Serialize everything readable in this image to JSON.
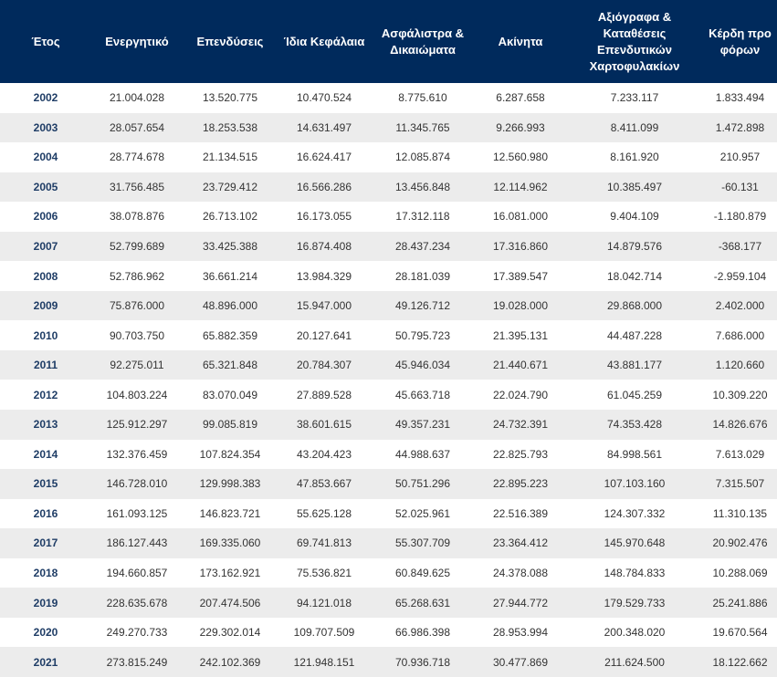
{
  "table": {
    "headers": [
      "Έτος",
      "Ενεργητικό",
      "Επενδύσεις",
      "Ίδια Κεφάλαια",
      "Ασφάλιστρα & Δικαιώματα",
      "Ακίνητα",
      "Αξιόγραφα & Καταθέσεις Επενδυτικών Χαρτοφυλακίων",
      "Κέρδη προ φόρων"
    ],
    "rows": [
      [
        "2002",
        "21.004.028",
        "13.520.775",
        "10.470.524",
        "8.775.610",
        "6.287.658",
        "7.233.117",
        "1.833.494"
      ],
      [
        "2003",
        "28.057.654",
        "18.253.538",
        "14.631.497",
        "11.345.765",
        "9.266.993",
        "8.411.099",
        "1.472.898"
      ],
      [
        "2004",
        "28.774.678",
        "21.134.515",
        "16.624.417",
        "12.085.874",
        "12.560.980",
        "8.161.920",
        "210.957"
      ],
      [
        "2005",
        "31.756.485",
        "23.729.412",
        "16.566.286",
        "13.456.848",
        "12.114.962",
        "10.385.497",
        "-60.131"
      ],
      [
        "2006",
        "38.078.876",
        "26.713.102",
        "16.173.055",
        "17.312.118",
        "16.081.000",
        "9.404.109",
        "-1.180.879"
      ],
      [
        "2007",
        "52.799.689",
        "33.425.388",
        "16.874.408",
        "28.437.234",
        "17.316.860",
        "14.879.576",
        "-368.177"
      ],
      [
        "2008",
        "52.786.962",
        "36.661.214",
        "13.984.329",
        "28.181.039",
        "17.389.547",
        "18.042.714",
        "-2.959.104"
      ],
      [
        "2009",
        "75.876.000",
        "48.896.000",
        "15.947.000",
        "49.126.712",
        "19.028.000",
        "29.868.000",
        "2.402.000"
      ],
      [
        "2010",
        "90.703.750",
        "65.882.359",
        "20.127.641",
        "50.795.723",
        "21.395.131",
        "44.487.228",
        "7.686.000"
      ],
      [
        "2011",
        "92.275.011",
        "65.321.848",
        "20.784.307",
        "45.946.034",
        "21.440.671",
        "43.881.177",
        "1.120.660"
      ],
      [
        "2012",
        "104.803.224",
        "83.070.049",
        "27.889.528",
        "45.663.718",
        "22.024.790",
        "61.045.259",
        "10.309.220"
      ],
      [
        "2013",
        "125.912.297",
        "99.085.819",
        "38.601.615",
        "49.357.231",
        "24.732.391",
        "74.353.428",
        "14.826.676"
      ],
      [
        "2014",
        "132.376.459",
        "107.824.354",
        "43.204.423",
        "44.988.637",
        "22.825.793",
        "84.998.561",
        "7.613.029"
      ],
      [
        "2015",
        "146.728.010",
        "129.998.383",
        "47.853.667",
        "50.751.296",
        "22.895.223",
        "107.103.160",
        "7.315.507"
      ],
      [
        "2016",
        "161.093.125",
        "146.823.721",
        "55.625.128",
        "52.025.961",
        "22.516.389",
        "124.307.332",
        "11.310.135"
      ],
      [
        "2017",
        "186.127.443",
        "169.335.060",
        "69.741.813",
        "55.307.709",
        "23.364.412",
        "145.970.648",
        "20.902.476"
      ],
      [
        "2018",
        "194.660.857",
        "173.162.921",
        "75.536.821",
        "60.849.625",
        "24.378.088",
        "148.784.833",
        "10.288.069"
      ],
      [
        "2019",
        "228.635.678",
        "207.474.506",
        "94.121.018",
        "65.268.631",
        "27.944.772",
        "179.529.733",
        "25.241.886"
      ],
      [
        "2020",
        "249.270.733",
        "229.302.014",
        "109.707.509",
        "66.986.398",
        "28.953.994",
        "200.348.020",
        "19.670.564"
      ],
      [
        "2021",
        "273.815.249",
        "242.102.369",
        "121.948.151",
        "70.936.718",
        "30.477.869",
        "211.624.500",
        "18.122.662"
      ]
    ]
  },
  "colors": {
    "header_bg": "#002a5c",
    "header_text": "#ffffff",
    "row_alt_bg": "#ececec",
    "year_text": "#1f3d66"
  }
}
